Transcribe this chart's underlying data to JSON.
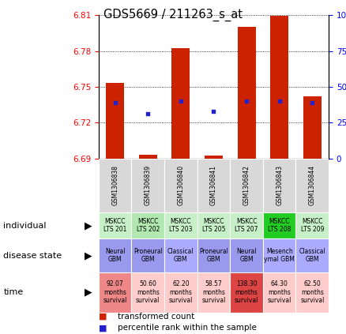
{
  "title": "GDS5669 / 211263_s_at",
  "samples": [
    "GSM1306838",
    "GSM1306839",
    "GSM1306840",
    "GSM1306841",
    "GSM1306842",
    "GSM1306843",
    "GSM1306844"
  ],
  "bar_values": [
    6.7536,
    6.6933,
    6.7824,
    6.6924,
    6.8002,
    6.8093,
    6.7418
  ],
  "bar_base": 6.69,
  "dot_values": [
    6.7368,
    6.7278,
    6.738,
    6.7296,
    6.738,
    6.738,
    6.7368
  ],
  "ylim_left": [
    6.69,
    6.81
  ],
  "ylim_right": [
    0,
    100
  ],
  "yticks_left": [
    6.69,
    6.72,
    6.75,
    6.78,
    6.81
  ],
  "yticks_right": [
    0,
    25,
    50,
    75,
    100
  ],
  "individual_labels": [
    "MSKCC\nLTS 201",
    "MSKCC\nLTS 202",
    "MSKCC\nLTS 203",
    "MSKCC\nLTS 205",
    "MSKCC\nLTS 207",
    "MSKCC\nLTS 208",
    "MSKCC\nLTS 209"
  ],
  "individual_colors": [
    "#c8f0c8",
    "#b0e8b0",
    "#c8f0c8",
    "#c8f0c8",
    "#c8f0c8",
    "#22cc22",
    "#c8f0c8"
  ],
  "disease_labels": [
    "Neural\nGBM",
    "Proneural\nGBM",
    "Classical\nGBM",
    "Proneural\nGBM",
    "Neural\nGBM",
    "Mesench\nymal GBM",
    "Classical\nGBM"
  ],
  "disease_colors": [
    "#9999ee",
    "#9999ee",
    "#aaaaff",
    "#9999ee",
    "#9999ee",
    "#aaaaff",
    "#aaaaff"
  ],
  "time_labels": [
    "92.07\nmonths\nsurvival",
    "50.60\nmonths\nsurvival",
    "62.20\nmonths\nsurvival",
    "58.57\nmonths\nsurvival",
    "138.30\nmonths\nsurvival",
    "64.30\nmonths\nsurvival",
    "62.50\nmonths\nsurvival"
  ],
  "time_colors": [
    "#ee8888",
    "#ffcccc",
    "#ffcccc",
    "#ffcccc",
    "#dd4444",
    "#ffcccc",
    "#ffcccc"
  ],
  "bar_color": "#cc2200",
  "dot_color": "#2222cc",
  "legend_tc": "transformed count",
  "legend_pr": "percentile rank within the sample",
  "fig_width": 4.38,
  "fig_height": 4.23,
  "dpi": 100
}
